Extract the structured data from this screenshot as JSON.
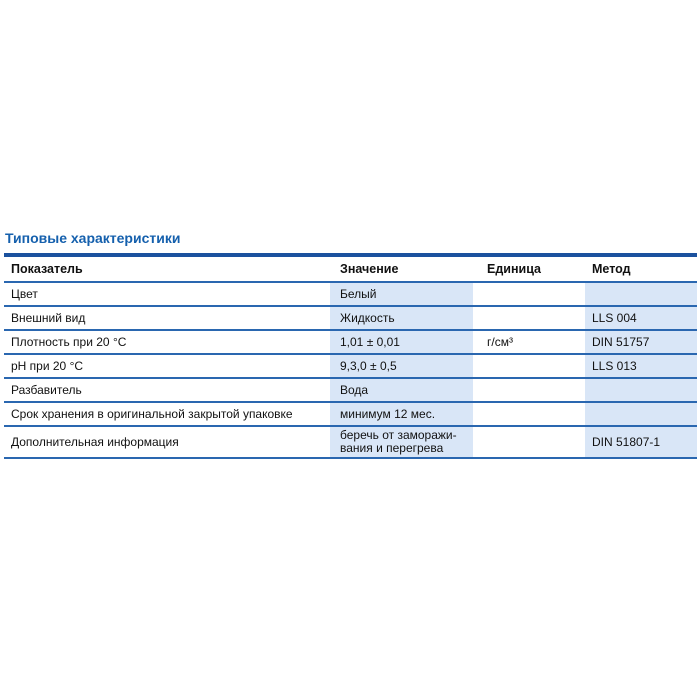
{
  "colors": {
    "accent_title": "#1560ad",
    "table_top_border": "#1b519e",
    "row_separator": "#2a67b0",
    "cell_fill_blue": "#d9e6f7",
    "text": "#1a1a1a"
  },
  "section": {
    "title": "Типовые характеристики"
  },
  "table": {
    "headers": [
      "Показатель",
      "Значение",
      "Единица",
      "Метод"
    ],
    "rows": [
      {
        "param": "Цвет",
        "value": "Белый",
        "unit": "",
        "method": ""
      },
      {
        "param": "Внешний вид",
        "value": "Жидкость",
        "unit": "",
        "method": "LLS 004"
      },
      {
        "param": "Плотность при 20 °C",
        "value": "1,01 ± 0,01",
        "unit": "г/см³",
        "method": "DIN 51757"
      },
      {
        "param": "pH при 20 °C",
        "value": "9,3,0 ± 0,5",
        "unit": "",
        "method": "LLS 013"
      },
      {
        "param": "Разбавитель",
        "value": "Вода",
        "unit": "",
        "method": ""
      },
      {
        "param": "Срок хранения в оригинальной закрытой упаковке",
        "value": "минимум 12 мес.",
        "unit": "",
        "method": ""
      },
      {
        "param": "Дополнительная информация",
        "value": "беречь от заморажи-\nвания и перегрева",
        "unit": "",
        "method": "DIN 51807-1"
      }
    ]
  }
}
